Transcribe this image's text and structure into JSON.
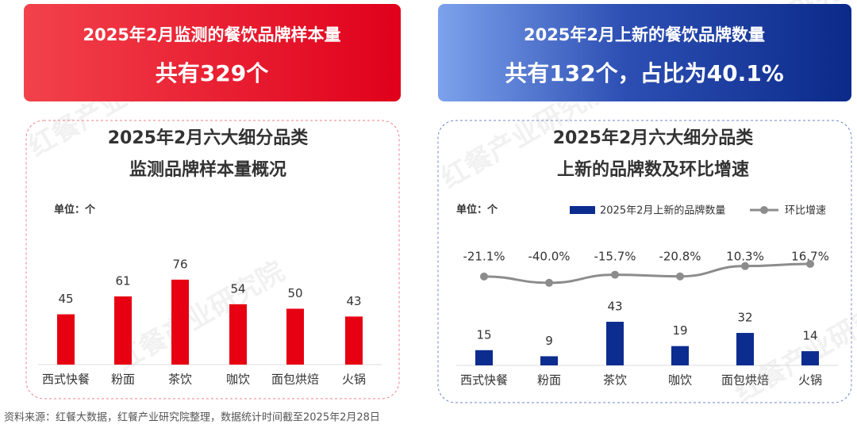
{
  "banners": [
    {
      "title": "2025年2月监测的餐饮品牌样本量",
      "value": "共有329个"
    },
    {
      "title": "2025年2月上新的餐饮品牌数量",
      "value": "共有132个，占比为40.1%"
    }
  ],
  "watermark": "红餐产业研究院",
  "chart_data": [
    {
      "type": "bar",
      "title": [
        "2025年2月六大细分品类",
        "监测品牌样本量概况"
      ],
      "unit": "单位：个",
      "categories": [
        "西式快餐",
        "粉面",
        "茶饮",
        "咖饮",
        "面包烘焙",
        "火锅"
      ],
      "values": [
        45,
        61,
        76,
        54,
        50,
        43
      ],
      "color": "#e60012"
    },
    {
      "type": "combo",
      "title": [
        "2025年2月六大细分品类",
        "上新的品牌数及环比增速"
      ],
      "unit": "单位：个",
      "categories": [
        "西式快餐",
        "粉面",
        "茶饮",
        "咖饮",
        "面包烘焙",
        "火锅"
      ],
      "series": [
        {
          "name": "2025年2月上新的品牌数量",
          "type": "bar",
          "color": "#0c2c8f",
          "values": [
            15,
            9,
            43,
            19,
            32,
            14
          ]
        },
        {
          "name": "环比增速",
          "type": "line",
          "axis": "y2",
          "color": "#8c8c8c",
          "values": [
            -21.1,
            -40.0,
            -15.7,
            -20.8,
            10.3,
            16.7
          ],
          "value_labels": [
            "-21.1%",
            "-40.0%",
            "-15.7%",
            "-20.8%",
            "10.3%",
            "16.7%"
          ]
        }
      ]
    }
  ],
  "source": "资料来源：红餐大数据，红餐产业研究院整理，数据统计时间截至2025年2月28日"
}
